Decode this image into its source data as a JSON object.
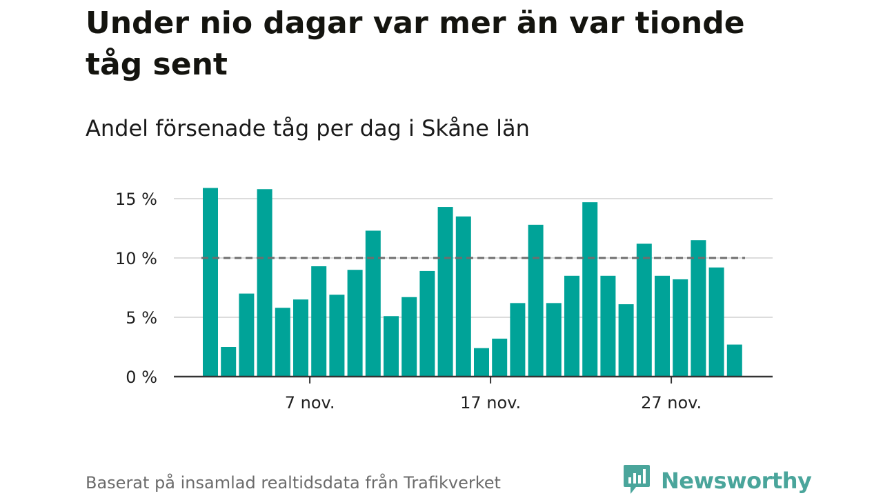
{
  "title": "Under nio dagar var mer än var tionde tåg sent",
  "subtitle": "Andel försenade tåg per dag i Skåne län",
  "footer": "Baserat på insamlad realtidsdata från Trafikverket",
  "logo": {
    "text": "Newsworthy",
    "icon": "bar-chart-speech-bubble-icon"
  },
  "colors": {
    "bar": "#00a398",
    "reference_line": "#6e6e6e",
    "grid": "#dcdcdc",
    "axis": "#333333",
    "logo": "#4aa59b"
  },
  "chart_data": {
    "type": "bar",
    "x": [
      "2024-11-01",
      "2024-11-02",
      "2024-11-03",
      "2024-11-04",
      "2024-11-05",
      "2024-11-06",
      "2024-11-07",
      "2024-11-08",
      "2024-11-09",
      "2024-11-10",
      "2024-11-11",
      "2024-11-12",
      "2024-11-13",
      "2024-11-14",
      "2024-11-15",
      "2024-11-16",
      "2024-11-17",
      "2024-11-18",
      "2024-11-19",
      "2024-11-20",
      "2024-11-21",
      "2024-11-22",
      "2024-11-23",
      "2024-11-24",
      "2024-11-25",
      "2024-11-26",
      "2024-11-27",
      "2024-11-28",
      "2024-11-29",
      "2024-11-30"
    ],
    "values": [
      15.9,
      2.5,
      7.0,
      15.8,
      5.8,
      6.5,
      9.3,
      6.9,
      9.0,
      12.3,
      5.1,
      6.7,
      8.9,
      14.3,
      13.5,
      2.4,
      3.2,
      6.2,
      12.8,
      6.2,
      8.5,
      14.7,
      8.5,
      6.1,
      11.2,
      8.5,
      8.2,
      11.5,
      9.2,
      2.7
    ],
    "reference_line": 10,
    "ylim": [
      0,
      16
    ],
    "yticks": [
      0,
      5,
      10,
      15
    ],
    "ytick_labels": [
      "0 %",
      "5 %",
      "10 %",
      "15 %"
    ],
    "xtick_labels": [
      "7 nov.",
      "17 nov.",
      "27 nov."
    ],
    "xtick_dates": [
      "2024-11-07",
      "2024-11-17",
      "2024-11-27"
    ],
    "grid": true
  }
}
